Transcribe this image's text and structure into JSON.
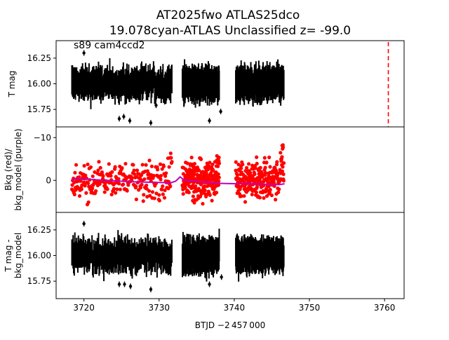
{
  "chart_data": {
    "type": "scatter",
    "title_line1": "AT2025fwo  ATLAS25dco",
    "title_line2": "19.078cyan-ATLAS Unclassified z= -99.0",
    "annotation": "s89 cam4ccd2",
    "xlabel": "BTJD −2 457 000",
    "xlim": [
      3716.3,
      3762.6
    ],
    "x_ticks": [
      3720,
      3730,
      3740,
      3750,
      3760
    ],
    "x_tick_labels": [
      "3720",
      "3730",
      "3740",
      "3750",
      "3760"
    ],
    "segments": [
      [
        3718.4,
        3731.7
      ],
      [
        3733.1,
        3738.0
      ],
      [
        3740.2,
        3746.6
      ]
    ],
    "panels": [
      {
        "name": "top",
        "ylabel": [
          "T mag"
        ],
        "ylim": [
          16.42,
          15.58
        ],
        "y_ticks": [
          15.75,
          16.0,
          16.25
        ],
        "y_tick_labels": [
          "15.75",
          "16.00",
          "16.25"
        ],
        "series": [
          {
            "name": "T mag",
            "color": "#000000",
            "marker": "errorbar",
            "center": 16.0,
            "spread": 0.13,
            "outliers": [
              {
                "x": 3724.7,
                "y": 15.66
              },
              {
                "x": 3725.3,
                "y": 15.68
              },
              {
                "x": 3726.1,
                "y": 15.64
              },
              {
                "x": 3728.9,
                "y": 15.62
              },
              {
                "x": 3736.7,
                "y": 15.64
              },
              {
                "x": 3729.6,
                "y": 15.79
              },
              {
                "x": 3720.0,
                "y": 16.3
              },
              {
                "x": 3738.2,
                "y": 15.73
              }
            ]
          }
        ],
        "vline": {
          "x": 3760.5,
          "color": "#ff0000",
          "style": "dashed"
        }
      },
      {
        "name": "middle",
        "ylabel": [
          "Bkg (red)/",
          "bkg_model (purple)"
        ],
        "ylim": [
          -12.5,
          7.5
        ],
        "y_ticks": [
          0,
          -10
        ],
        "y_tick_labels": [
          "0",
          "−10"
        ],
        "series": [
          {
            "name": "Bkg",
            "color": "#ff0000",
            "marker": "dot"
          },
          {
            "name": "bkg_model",
            "color": "#bf00bf",
            "marker": "line",
            "x": [
              3718.3,
              3719.0,
              3720.0,
              3722.0,
              3724.0,
              3726.0,
              3728.0,
              3730.0,
              3731.5,
              3732.2,
              3732.8,
              3733.3,
              3735.0,
              3737.0,
              3738.0,
              3740.2,
              3742.0,
              3744.0,
              3746.0,
              3746.7
            ],
            "y": [
              0.1,
              -0.5,
              -0.3,
              -0.1,
              0.1,
              0.3,
              0.4,
              0.5,
              0.6,
              0.2,
              -0.8,
              -0.1,
              0.3,
              0.5,
              0.7,
              0.8,
              0.8,
              0.9,
              1.0,
              0.8
            ]
          }
        ]
      },
      {
        "name": "bottom",
        "ylabel": [
          "T mag -",
          "bkg_model"
        ],
        "ylim": [
          16.42,
          15.58
        ],
        "y_ticks": [
          15.75,
          16.0,
          16.25
        ],
        "y_tick_labels": [
          "15.75",
          "16.00",
          "16.25"
        ],
        "series": [
          {
            "name": "T mag - bkg_model",
            "color": "#000000",
            "marker": "errorbar",
            "center": 16.0,
            "spread": 0.13,
            "outliers": [
              {
                "x": 3724.7,
                "y": 15.72
              },
              {
                "x": 3725.4,
                "y": 15.72
              },
              {
                "x": 3726.2,
                "y": 15.7
              },
              {
                "x": 3728.9,
                "y": 15.67
              },
              {
                "x": 3736.7,
                "y": 15.72
              },
              {
                "x": 3720.0,
                "y": 16.31
              },
              {
                "x": 3738.3,
                "y": 15.79
              }
            ]
          }
        ]
      }
    ]
  }
}
